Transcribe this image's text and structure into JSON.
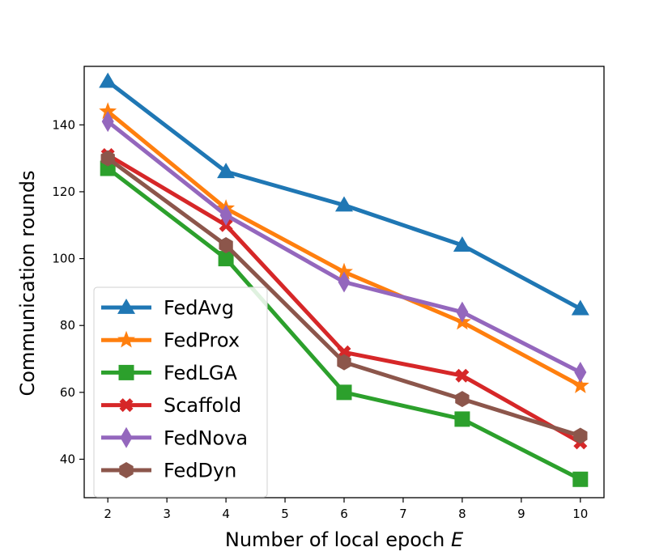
{
  "chart_data": {
    "type": "line",
    "title": "",
    "xlabel": "Number of local epoch",
    "xlabel_var": "E",
    "ylabel": "Communication rounds",
    "x": [
      2,
      4,
      6,
      8,
      10
    ],
    "xlim": [
      1.6,
      10.4
    ],
    "ylim": [
      28.5,
      157.5
    ],
    "xticks": [
      2,
      3,
      4,
      5,
      6,
      7,
      8,
      9,
      10
    ],
    "yticks": [
      40,
      60,
      80,
      100,
      120,
      140
    ],
    "grid": false,
    "legend_position": "lower-left",
    "series": [
      {
        "name": "FedAvg",
        "values": [
          153,
          126,
          116,
          104,
          85
        ],
        "color": "#1f77b4",
        "marker": "triangle"
      },
      {
        "name": "FedProx",
        "values": [
          144,
          115,
          96,
          81,
          62
        ],
        "color": "#ff7f0e",
        "marker": "star"
      },
      {
        "name": "FedLGA",
        "values": [
          127,
          100,
          60,
          52,
          34
        ],
        "color": "#2ca02c",
        "marker": "square"
      },
      {
        "name": "Scaffold",
        "values": [
          131,
          110,
          72,
          65,
          45
        ],
        "color": "#d62728",
        "marker": "x"
      },
      {
        "name": "FedNova",
        "values": [
          141,
          113,
          93,
          84,
          66
        ],
        "color": "#9467bd",
        "marker": "diamond"
      },
      {
        "name": "FedDyn",
        "values": [
          130,
          104,
          69,
          58,
          47
        ],
        "color": "#8c564b",
        "marker": "hexagon"
      }
    ]
  }
}
